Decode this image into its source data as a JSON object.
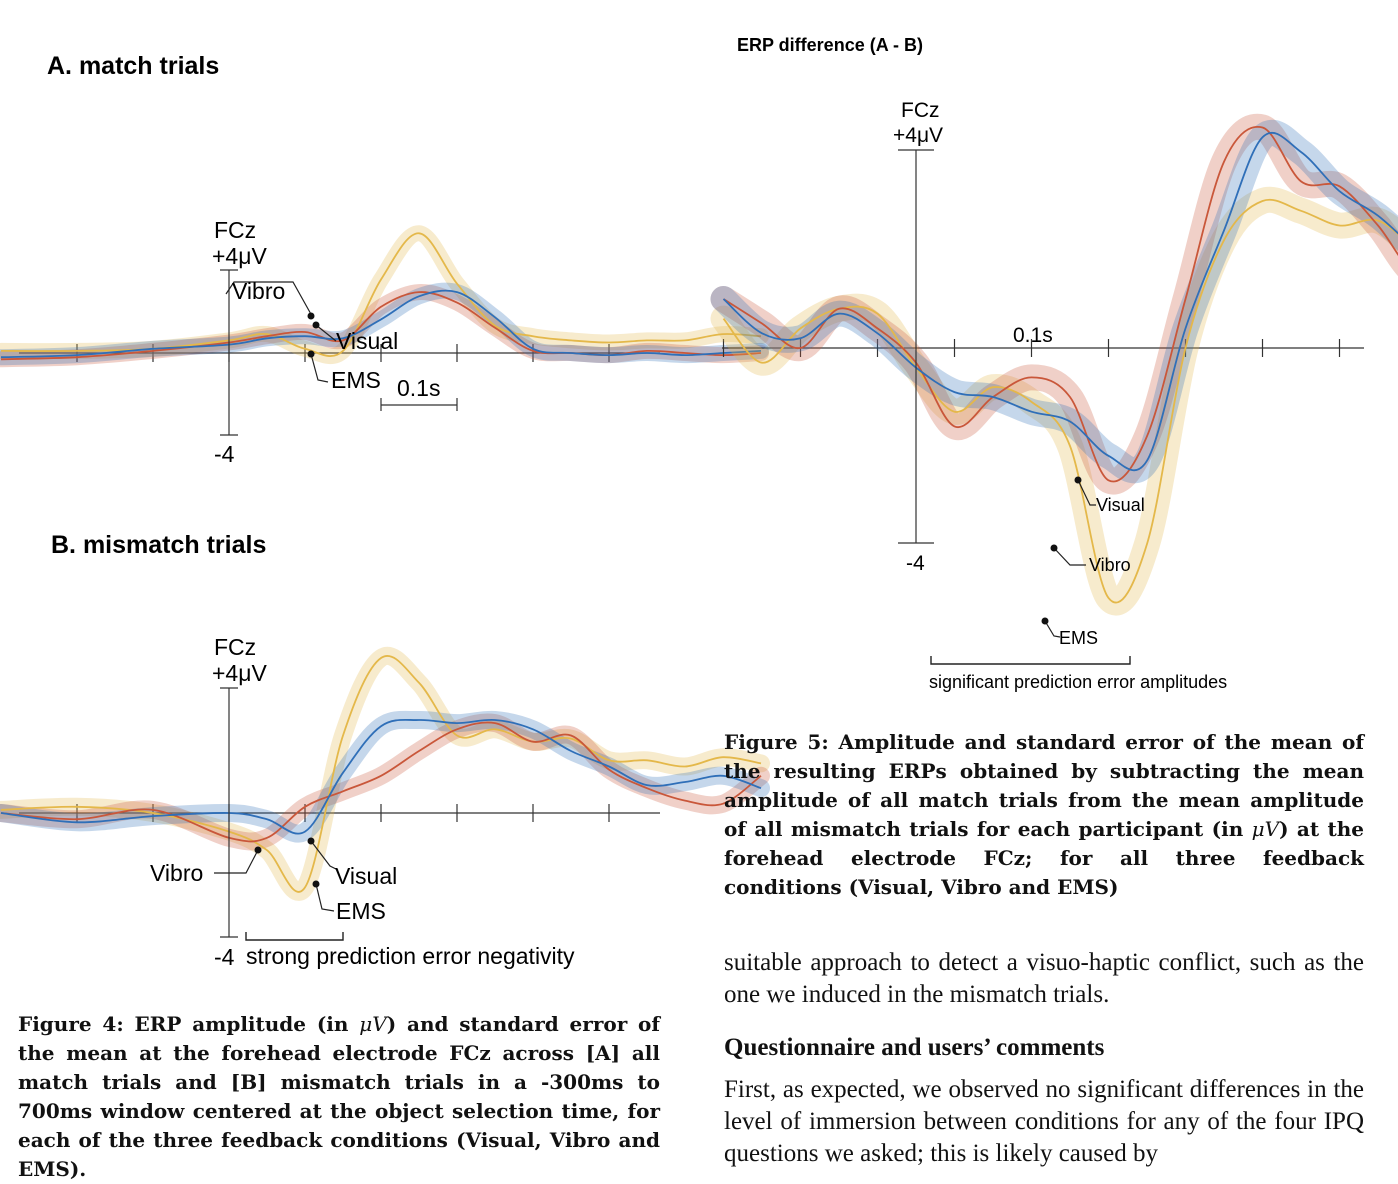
{
  "colors": {
    "ems": "#e4b84a",
    "vibro": "#c9573a",
    "visual": "#2f6fb8"
  },
  "chart_data": [
    {
      "type": "line",
      "panel": "A",
      "title": "A. match trials",
      "channel": "FCz",
      "y_top_label": "+4μV",
      "y_bottom_label": "-4",
      "ylim": [
        -4,
        4
      ],
      "xlim": [
        -0.3,
        0.7
      ],
      "x_unit": "s",
      "scale_bar_label": "0.1s",
      "series_labels": [
        "Vibro",
        "Visual",
        "EMS"
      ],
      "series": [
        {
          "name": "EMS",
          "color": "ems",
          "x": [
            -0.3,
            -0.2,
            -0.1,
            0.0,
            0.05,
            0.1,
            0.15,
            0.2,
            0.25,
            0.3,
            0.35,
            0.4,
            0.45,
            0.5,
            0.55,
            0.6,
            0.65,
            0.7
          ],
          "y": [
            0.1,
            0.1,
            0.2,
            0.6,
            0.9,
            0.2,
            0.1,
            3.5,
            5.7,
            3.3,
            1.3,
            0.8,
            0.6,
            0.5,
            0.6,
            0.6,
            0.9,
            0.8
          ]
        },
        {
          "name": "Vibro",
          "color": "vibro",
          "x": [
            -0.3,
            -0.2,
            -0.1,
            0.0,
            0.05,
            0.1,
            0.15,
            0.2,
            0.25,
            0.3,
            0.35,
            0.4,
            0.45,
            0.5,
            0.55,
            0.6,
            0.65,
            0.7
          ],
          "y": [
            -0.3,
            -0.2,
            0.1,
            0.5,
            0.8,
            1.0,
            0.6,
            2.2,
            2.9,
            2.4,
            1.2,
            0.1,
            0.0,
            -0.1,
            0.1,
            0.0,
            -0.1,
            0.0
          ]
        },
        {
          "name": "Visual",
          "color": "visual",
          "x": [
            -0.3,
            -0.2,
            -0.1,
            0.0,
            0.05,
            0.1,
            0.15,
            0.2,
            0.25,
            0.3,
            0.35,
            0.4,
            0.45,
            0.5,
            0.55,
            0.6,
            0.65,
            0.7
          ],
          "y": [
            -0.2,
            -0.1,
            0.2,
            0.4,
            0.7,
            0.8,
            0.7,
            1.6,
            2.7,
            2.9,
            1.7,
            0.2,
            0.0,
            -0.1,
            0.0,
            -0.1,
            0.0,
            0.1
          ]
        }
      ]
    },
    {
      "type": "line",
      "panel": "B",
      "title": "B. mismatch trials",
      "channel": "FCz",
      "y_top_label": "+4μV",
      "y_bottom_label": "-4",
      "ylim": [
        -4,
        4
      ],
      "xlim": [
        -0.3,
        0.7
      ],
      "x_unit": "s",
      "bracket_label": "strong prediction error negativity",
      "series_labels": [
        "Vibro",
        "Visual",
        "EMS"
      ],
      "series": [
        {
          "name": "EMS",
          "color": "ems",
          "x": [
            -0.3,
            -0.2,
            -0.1,
            0.0,
            0.05,
            0.1,
            0.15,
            0.2,
            0.25,
            0.3,
            0.35,
            0.4,
            0.45,
            0.5,
            0.55,
            0.6,
            0.65,
            0.7
          ],
          "y": [
            0.1,
            0.2,
            0.0,
            -0.6,
            -1.2,
            -2.4,
            2.5,
            5.0,
            4.2,
            2.5,
            2.7,
            2.3,
            2.4,
            1.7,
            1.7,
            1.5,
            1.8,
            1.6
          ]
        },
        {
          "name": "Vibro",
          "color": "vibro",
          "x": [
            -0.3,
            -0.2,
            -0.1,
            0.0,
            0.05,
            0.1,
            0.15,
            0.2,
            0.25,
            0.3,
            0.35,
            0.4,
            0.45,
            0.5,
            0.55,
            0.6,
            0.65,
            0.7
          ],
          "y": [
            0.0,
            -0.2,
            0.1,
            -0.8,
            -0.8,
            0.2,
            0.7,
            1.2,
            2.0,
            2.7,
            2.9,
            2.3,
            2.5,
            1.4,
            0.8,
            0.4,
            0.3,
            1.2
          ]
        },
        {
          "name": "Visual",
          "color": "visual",
          "x": [
            -0.3,
            -0.2,
            -0.1,
            0.0,
            0.05,
            0.1,
            0.15,
            0.2,
            0.25,
            0.3,
            0.35,
            0.4,
            0.45,
            0.5,
            0.55,
            0.6,
            0.65,
            0.7
          ],
          "y": [
            0.0,
            -0.3,
            -0.1,
            0.0,
            -0.2,
            -0.6,
            1.3,
            2.8,
            3.0,
            2.9,
            3.0,
            2.7,
            2.0,
            1.5,
            0.9,
            1.0,
            1.2,
            0.8
          ]
        }
      ]
    },
    {
      "type": "line",
      "panel": "difference",
      "title": "ERP difference (A - B)",
      "channel": "FCz",
      "y_top_label": "+4μV",
      "y_bottom_label": "-4",
      "ylim": [
        -4,
        4
      ],
      "xlim": [
        -0.25,
        0.7
      ],
      "x_unit": "s",
      "tick_label": "0.1s",
      "bracket_label": "significant prediction error amplitudes",
      "series_labels": [
        "Visual",
        "Vibro",
        "EMS"
      ],
      "series": [
        {
          "name": "EMS",
          "color": "ems",
          "x": [
            -0.25,
            -0.2,
            -0.15,
            -0.1,
            -0.05,
            0.0,
            0.05,
            0.1,
            0.15,
            0.2,
            0.25,
            0.3,
            0.35,
            0.4,
            0.45,
            0.5,
            0.55,
            0.6,
            0.65,
            0.7
          ],
          "y": [
            0.6,
            -0.3,
            0.4,
            0.8,
            0.7,
            -0.4,
            -1.3,
            -0.8,
            -1.1,
            -2.0,
            -5.1,
            -4.0,
            0.0,
            2.2,
            3.0,
            2.8,
            2.5,
            2.6,
            2.0,
            1.5
          ]
        },
        {
          "name": "Vibro",
          "color": "vibro",
          "x": [
            -0.25,
            -0.2,
            -0.15,
            -0.1,
            -0.05,
            0.0,
            0.05,
            0.1,
            0.15,
            0.2,
            0.25,
            0.3,
            0.35,
            0.4,
            0.45,
            0.5,
            0.55,
            0.6,
            0.65,
            0.7
          ],
          "y": [
            1.0,
            0.5,
            0.0,
            0.8,
            0.4,
            -0.3,
            -1.6,
            -1.0,
            -0.6,
            -1.0,
            -2.7,
            -1.8,
            1.0,
            3.8,
            4.5,
            3.4,
            3.3,
            2.5,
            1.5,
            1.8
          ]
        },
        {
          "name": "Visual",
          "color": "visual",
          "x": [
            -0.25,
            -0.2,
            -0.15,
            -0.1,
            -0.05,
            0.0,
            0.05,
            0.1,
            0.15,
            0.2,
            0.25,
            0.3,
            0.35,
            0.4,
            0.45,
            0.5,
            0.55,
            0.6,
            0.65,
            0.7
          ],
          "y": [
            1.0,
            0.3,
            0.2,
            0.7,
            0.3,
            -0.4,
            -0.9,
            -1.0,
            -1.3,
            -1.5,
            -2.2,
            -2.3,
            0.4,
            2.4,
            4.3,
            4.0,
            3.2,
            2.7,
            2.0,
            1.4
          ]
        }
      ]
    }
  ],
  "figure4_caption": {
    "pre": "Figure 4: ERP amplitude (in ",
    "unit": "μV",
    "post": ") and standard error of the mean at the forehead electrode FCz across [A] all match trials and [B] mismatch trials in a -300ms to 700ms window centered at the object selection time, for each of the three feedback conditions (Visual, Vibro and EMS)."
  },
  "figure5_caption": {
    "pre": "Figure 5: Amplitude and standard error of the mean of the resulting ERPs obtained by subtracting the mean amplitude of all match trials from the mean amplitude of all mismatch trials for each participant (in ",
    "unit": "μV",
    "post": ") at the forehead electrode FCz; for all three feedback conditions (Visual, Vibro and EMS)"
  },
  "body": {
    "para_top": "suitable approach to detect a visuo-haptic conflict, such as the one we induced in the mismatch trials.",
    "heading": "Questionnaire and users’ comments",
    "para_bottom": "First, as expected, we observed no significant differences in the level of immersion between conditions for any of the four IPQ questions we asked; this is likely caused by"
  }
}
